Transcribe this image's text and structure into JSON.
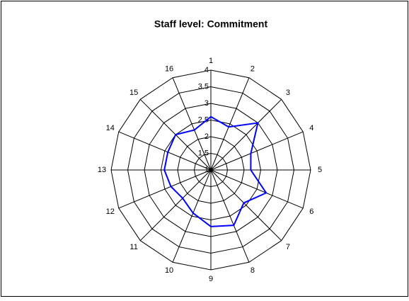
{
  "chart_data": {
    "type": "radar",
    "title": "Staff level: Commitment",
    "categories": [
      "1",
      "2",
      "3",
      "4",
      "5",
      "6",
      "7",
      "8",
      "9",
      "10",
      "11",
      "12",
      "13",
      "14",
      "15",
      "16"
    ],
    "values": [
      2.6,
      2.4,
      3.0,
      2.3,
      2.2,
      2.8,
      2.4,
      2.8,
      2.7,
      2.4,
      2.2,
      2.3,
      2.4,
      2.4,
      2.5,
      2.3
    ],
    "color": "#0000ff",
    "rlim": [
      1,
      4
    ],
    "rticks": [
      1,
      1.5,
      2,
      2.5,
      3,
      3.5,
      4
    ],
    "grid": true
  }
}
